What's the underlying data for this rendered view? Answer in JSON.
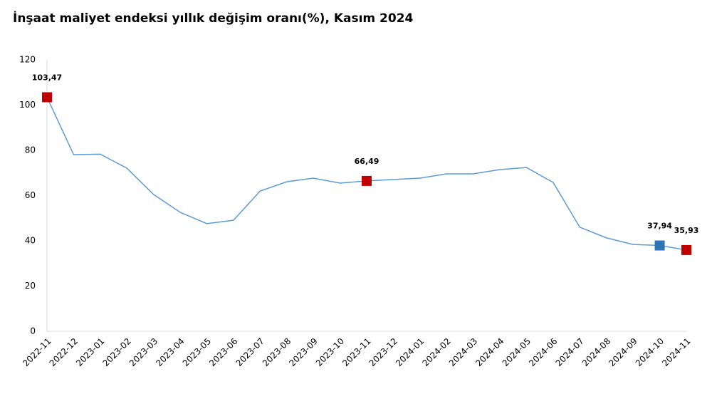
{
  "chart_data": {
    "type": "line",
    "title": "İnşaat maliyet endeksi yıllık değişim oranı(%), Kasım 2024",
    "categories": [
      "2022-11",
      "2022-12",
      "2023-01",
      "2023-02",
      "2023-03",
      "2023-04",
      "2023-05",
      "2023-06",
      "2023-07",
      "2023-08",
      "2023-09",
      "2023-10",
      "2023-11",
      "2023-12",
      "2024-01",
      "2024-02",
      "2024-03",
      "2024-04",
      "2024-05",
      "2024-06",
      "2024-07",
      "2024-08",
      "2024-09",
      "2024-10",
      "2024-11"
    ],
    "series": [
      {
        "color": "#5b9bd5",
        "values": [
          103.47,
          78.1,
          78.3,
          72.1,
          60.5,
          52.6,
          47.6,
          49.1,
          62.0,
          66.1,
          67.7,
          65.5,
          66.49,
          67.1,
          67.7,
          69.6,
          69.6,
          71.5,
          72.4,
          65.8,
          46.0,
          41.3,
          38.4,
          37.94,
          35.93
        ],
        "value_labels": [
          "103,47",
          null,
          null,
          null,
          null,
          null,
          null,
          null,
          null,
          null,
          null,
          null,
          "66,49",
          null,
          null,
          null,
          null,
          null,
          null,
          null,
          null,
          null,
          null,
          "37,94",
          "35,93"
        ],
        "marker_colors": [
          "#c00000",
          null,
          null,
          null,
          null,
          null,
          null,
          null,
          null,
          null,
          null,
          null,
          "#c00000",
          null,
          null,
          null,
          null,
          null,
          null,
          null,
          null,
          null,
          null,
          "#2e75b6",
          "#c00000"
        ]
      }
    ],
    "ylim": [
      0,
      120
    ],
    "yticks": [
      0,
      20,
      40,
      60,
      80,
      100,
      120
    ],
    "grid": false
  }
}
